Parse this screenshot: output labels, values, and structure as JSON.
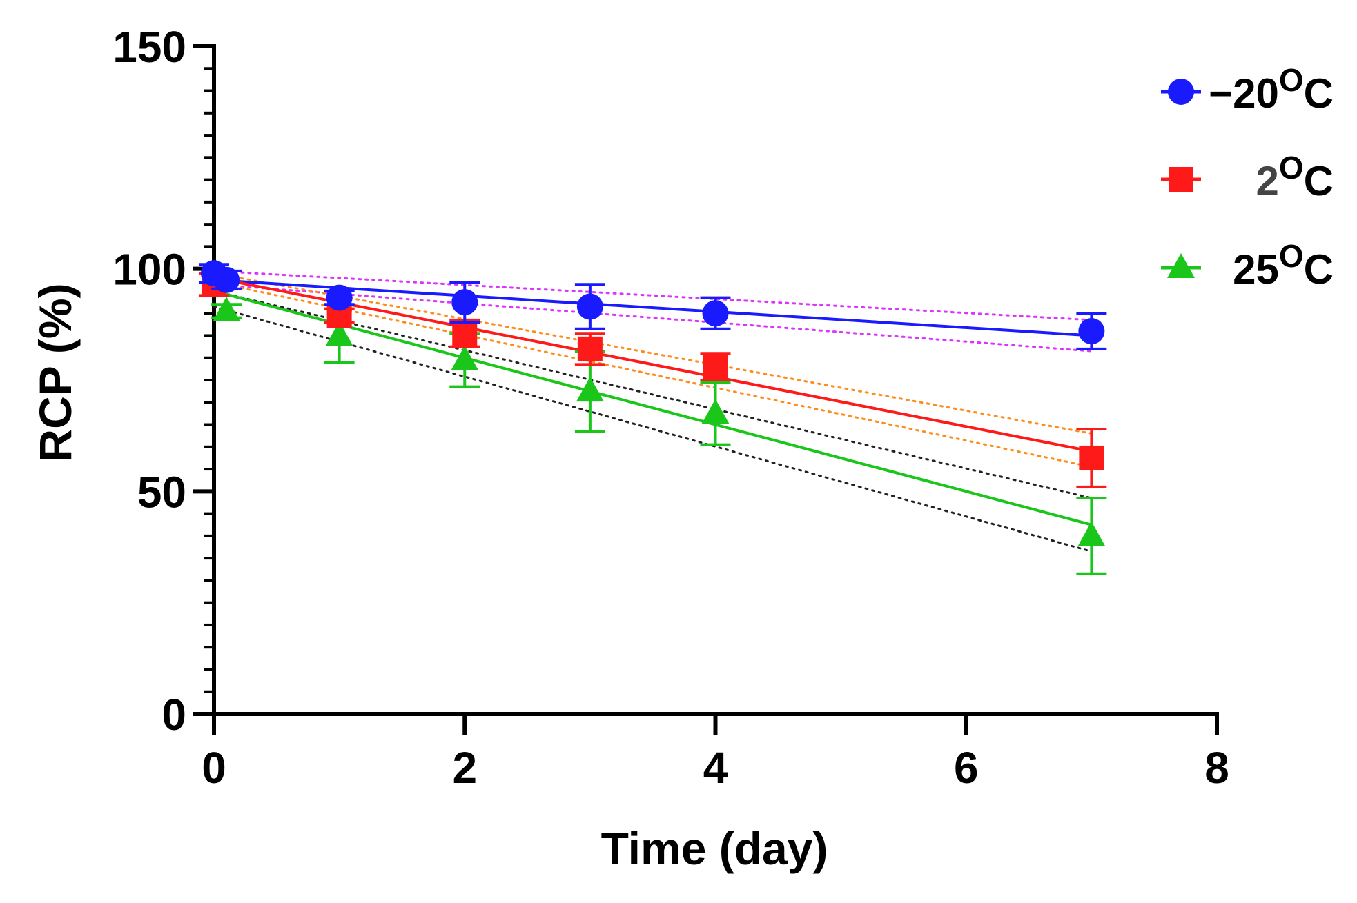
{
  "chart_data": {
    "type": "scatter",
    "title": "",
    "xlabel": "Time (day)",
    "ylabel": "RCP (%)",
    "xlim": [
      0,
      8
    ],
    "ylim": [
      0,
      150
    ],
    "x_ticks": [
      0,
      2,
      4,
      6,
      8
    ],
    "y_ticks": [
      0,
      50,
      100,
      150
    ],
    "y_minor_step": 5,
    "grid": false,
    "legend_position": "top-right",
    "series": [
      {
        "name": "−20",
        "degree": "O",
        "unit": "C",
        "color": "#1a1aff",
        "marker": "circle",
        "points": [
          {
            "x": 0,
            "y": 99.0,
            "err": 2.0
          },
          {
            "x": 0.1,
            "y": 97.5,
            "err": 2.0
          },
          {
            "x": 1,
            "y": 93.5,
            "err": 1.5
          },
          {
            "x": 2,
            "y": 92.5,
            "err": 4.5
          },
          {
            "x": 3,
            "y": 91.5,
            "err": 5.0
          },
          {
            "x": 4,
            "y": 90.0,
            "err": 3.5
          },
          {
            "x": 7,
            "y": 86.0,
            "err": 4.0
          }
        ],
        "fit": {
          "x": [
            0,
            7
          ],
          "y": [
            97.5,
            85.0
          ],
          "color": "#1a1aff"
        },
        "ci": {
          "upper": [
            99.5,
            88.5
          ],
          "lower": [
            96.5,
            81.5
          ],
          "color": "#dd33ff"
        }
      },
      {
        "name": "2",
        "degree": "O",
        "unit": "C",
        "color": "#ff1a1a",
        "marker": "square",
        "points": [
          {
            "x": 0,
            "y": 96.5,
            "err": 2.5
          },
          {
            "x": 1,
            "y": 89.5,
            "err": 1.5
          },
          {
            "x": 2,
            "y": 85.5,
            "err": 3.0
          },
          {
            "x": 3,
            "y": 82.0,
            "err": 3.5
          },
          {
            "x": 4,
            "y": 78.0,
            "err": 3.0
          },
          {
            "x": 7,
            "y": 57.5,
            "err": 6.5
          }
        ],
        "fit": {
          "x": [
            0,
            7
          ],
          "y": [
            98.0,
            59.0
          ],
          "color": "#ff1a1a"
        },
        "ci": {
          "upper": [
            99.0,
            63.0
          ],
          "lower": [
            97.0,
            55.5
          ],
          "color": "#ff8c1a"
        }
      },
      {
        "name": "25",
        "degree": "O",
        "unit": "C",
        "color": "#1ac61a",
        "marker": "triangle",
        "points": [
          {
            "x": 0.1,
            "y": 90.5,
            "err": 1.5
          },
          {
            "x": 1,
            "y": 85.0,
            "err": 6.0
          },
          {
            "x": 2,
            "y": 79.5,
            "err": 6.0
          },
          {
            "x": 3,
            "y": 72.5,
            "err": 9.0
          },
          {
            "x": 4,
            "y": 67.5,
            "err": 7.0
          },
          {
            "x": 7,
            "y": 40.0,
            "err": 8.5
          }
        ],
        "fit": {
          "x": [
            0,
            7
          ],
          "y": [
            95.0,
            42.5
          ],
          "color": "#1ac61a"
        },
        "ci": {
          "upper": [
            95.0,
            48.5
          ],
          "lower": [
            91.5,
            36.5
          ],
          "color": "#222222"
        }
      }
    ]
  }
}
